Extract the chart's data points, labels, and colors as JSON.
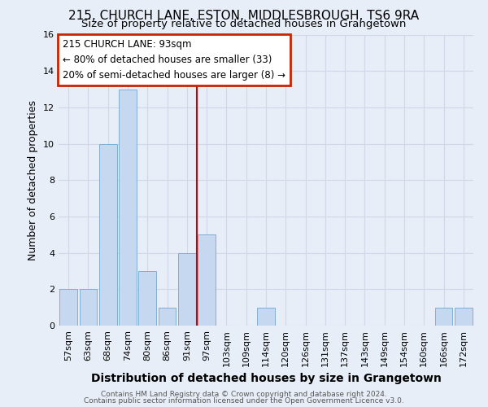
{
  "title1": "215, CHURCH LANE, ESTON, MIDDLESBROUGH, TS6 9RA",
  "title2": "Size of property relative to detached houses in Grangetown",
  "xlabel": "Distribution of detached houses by size in Grangetown",
  "ylabel": "Number of detached properties",
  "categories": [
    "57sqm",
    "63sqm",
    "68sqm",
    "74sqm",
    "80sqm",
    "86sqm",
    "91sqm",
    "97sqm",
    "103sqm",
    "109sqm",
    "114sqm",
    "120sqm",
    "126sqm",
    "131sqm",
    "137sqm",
    "143sqm",
    "149sqm",
    "154sqm",
    "160sqm",
    "166sqm",
    "172sqm"
  ],
  "values": [
    2,
    2,
    10,
    13,
    3,
    1,
    4,
    5,
    0,
    0,
    1,
    0,
    0,
    0,
    0,
    0,
    0,
    0,
    0,
    1,
    1
  ],
  "bar_color": "#c5d8ef",
  "bar_edge_color": "#7fafd4",
  "bg_color": "#e8eef8",
  "grid_color": "#d0d8e8",
  "vline_x": 6.5,
  "vline_color": "#cc0000",
  "annotation_line1": "215 CHURCH LANE: 93sqm",
  "annotation_line2": "← 80% of detached houses are smaller (33)",
  "annotation_line3": "20% of semi-detached houses are larger (8) →",
  "annotation_box_color": "#ffffff",
  "annotation_box_edge": "#cc2200",
  "ylim": [
    0,
    16
  ],
  "yticks": [
    0,
    2,
    4,
    6,
    8,
    10,
    12,
    14,
    16
  ],
  "footer1": "Contains HM Land Registry data © Crown copyright and database right 2024.",
  "footer2": "Contains public sector information licensed under the Open Government Licence v3.0.",
  "title1_fontsize": 11,
  "title2_fontsize": 9.5,
  "ylabel_fontsize": 9,
  "xlabel_fontsize": 10,
  "tick_fontsize": 8,
  "annot_fontsize": 8.5,
  "footer_fontsize": 6.5
}
